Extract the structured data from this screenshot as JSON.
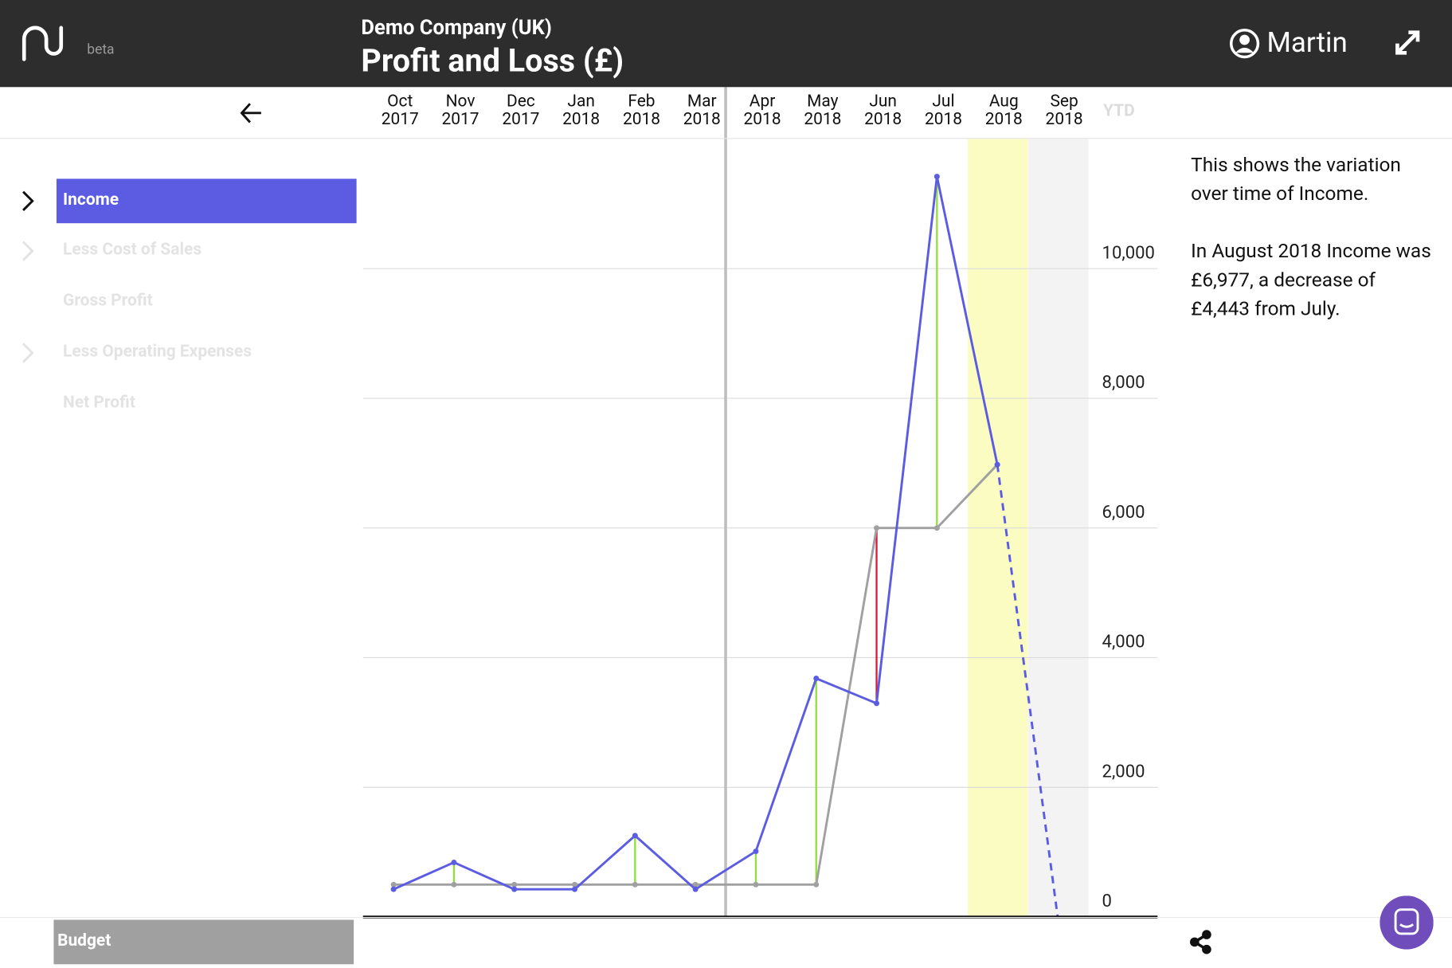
{
  "header": {
    "badge": "beta",
    "company": "Demo Company (UK)",
    "title": "Profit and Loss (£)",
    "user": "Martin"
  },
  "sidebar": {
    "items": [
      "Less Cost of Sales",
      "Gross Profit",
      "Less Operating Expenses",
      "Net Profit"
    ],
    "expandable": [
      true,
      false,
      true,
      false
    ]
  },
  "description": [
    "This shows the variation over time of Income.",
    "In August 2018 Income was £6,977, a decrease of £4,443 from July."
  ],
  "chart_data": {
    "type": "line",
    "categories": [
      "Oct 2017",
      "Nov 2017",
      "Dec 2017",
      "Jan 2018",
      "Feb 2018",
      "Mar 2018",
      "Apr 2018",
      "May 2018",
      "Jun 2018",
      "Jul 2018",
      "Aug 2018",
      "Sep 2018"
    ],
    "total_label": "YTD",
    "series": [
      {
        "name": "Income",
        "color": "#5b5ce2",
        "values": [
          428,
          842,
          428,
          428,
          1255,
          428,
          1013,
          3680,
          3295,
          11420,
          6977,
          0
        ]
      },
      {
        "name": "Budget",
        "color": "#a0a0a0",
        "values": [
          500,
          500,
          500,
          500,
          500,
          500,
          500,
          500,
          6000,
          6000,
          6977,
          null
        ]
      }
    ],
    "over_color": "#8fe03a",
    "under_color": "#e0193c",
    "selected_category": "Aug 2018",
    "selected_color": "#fafcc2",
    "forecast_from": "Sep 2018",
    "forecast_color": "#f3f3f3",
    "divider_before": "Apr 2018",
    "ylim": [
      0,
      12000
    ],
    "yticks": [
      0,
      {
        "value": 2000,
        "label": "2,000"
      },
      {
        "value": 4000,
        "label": "4,000"
      },
      {
        "value": 6000,
        "label": "6,000"
      },
      {
        "value": 8000,
        "label": "8,000"
      },
      {
        "value": 10000,
        "label": "10,000"
      }
    ],
    "grid": true
  }
}
